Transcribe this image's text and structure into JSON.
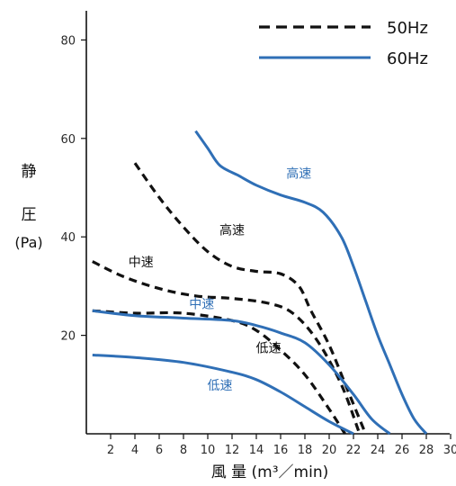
{
  "chart_data": {
    "type": "line",
    "xlabel": "風 量 (m³／min)",
    "ylabel_lines": [
      "静",
      "圧",
      "(Pa)"
    ],
    "xlim": [
      0,
      30
    ],
    "ylim": [
      0,
      87
    ],
    "x_ticks": [
      2,
      4,
      6,
      8,
      10,
      12,
      14,
      16,
      18,
      20,
      22,
      24,
      26,
      28,
      30
    ],
    "y_ticks": [
      20,
      40,
      60,
      80
    ],
    "grid": false,
    "legend": [
      {
        "name": "50Hz",
        "style": "dashed",
        "color": "#111111"
      },
      {
        "name": "60Hz",
        "style": "solid",
        "color": "#2f6fb6"
      }
    ],
    "series": [
      {
        "freq": "50Hz",
        "speed": "高速",
        "style": "dashed",
        "color": "#111111",
        "x": [
          4,
          6,
          8,
          10,
          12,
          14,
          16,
          17.5,
          18.5,
          20,
          21.5,
          23
        ],
        "y": [
          55,
          48,
          42,
          37,
          34,
          33,
          32.5,
          30,
          25,
          18,
          9,
          0
        ]
      },
      {
        "freq": "50Hz",
        "speed": "中速",
        "style": "dashed",
        "color": "#111111",
        "x": [
          0.5,
          3,
          6,
          9,
          12,
          15,
          17,
          19,
          21,
          22.5
        ],
        "y": [
          35,
          32,
          29.5,
          28,
          27.5,
          26.5,
          24.5,
          19,
          10,
          0
        ]
      },
      {
        "freq": "50Hz",
        "speed": "低速",
        "style": "dashed",
        "color": "#111111",
        "x": [
          0.5,
          4,
          8,
          12,
          14,
          16,
          18,
          20,
          21.3
        ],
        "y": [
          25,
          24.5,
          24.5,
          23,
          21,
          17,
          12,
          5,
          0
        ]
      },
      {
        "freq": "60Hz",
        "speed": "高速",
        "style": "solid",
        "color": "#2f6fb6",
        "x": [
          9,
          10,
          11,
          12.5,
          14,
          16,
          18,
          19.5,
          21,
          22,
          23,
          24,
          25,
          26,
          27,
          28
        ],
        "y": [
          61.5,
          58,
          54.5,
          52.5,
          50.5,
          48.5,
          47,
          45,
          40,
          34,
          27,
          20,
          14,
          8,
          3,
          0
        ]
      },
      {
        "freq": "60Hz",
        "speed": "中速",
        "style": "solid",
        "color": "#2f6fb6",
        "x": [
          0.5,
          4,
          8,
          12,
          14,
          16,
          18,
          20,
          22,
          23.5,
          25
        ],
        "y": [
          25,
          24,
          23.5,
          23,
          22,
          20.5,
          18.5,
          14,
          8,
          3,
          0
        ]
      },
      {
        "freq": "60Hz",
        "speed": "低速",
        "style": "solid",
        "color": "#2f6fb6",
        "x": [
          0.5,
          4,
          8,
          12,
          14,
          16,
          18,
          20,
          22
        ],
        "y": [
          16,
          15.5,
          14.5,
          12.5,
          11,
          8.5,
          5.5,
          2.5,
          0
        ]
      }
    ],
    "annotations": [
      {
        "text": "高速",
        "x": 12,
        "y": 40.5,
        "color": "#111111"
      },
      {
        "text": "中速",
        "x": 4.5,
        "y": 34,
        "color": "#111111"
      },
      {
        "text": "低速",
        "x": 15,
        "y": 16.5,
        "color": "#111111"
      },
      {
        "text": "高速",
        "x": 17.5,
        "y": 52,
        "color": "#2f6fb6"
      },
      {
        "text": "中速",
        "x": 9.5,
        "y": 25.5,
        "color": "#2f6fb6"
      },
      {
        "text": "低速",
        "x": 11,
        "y": 9,
        "color": "#2f6fb6"
      }
    ]
  }
}
